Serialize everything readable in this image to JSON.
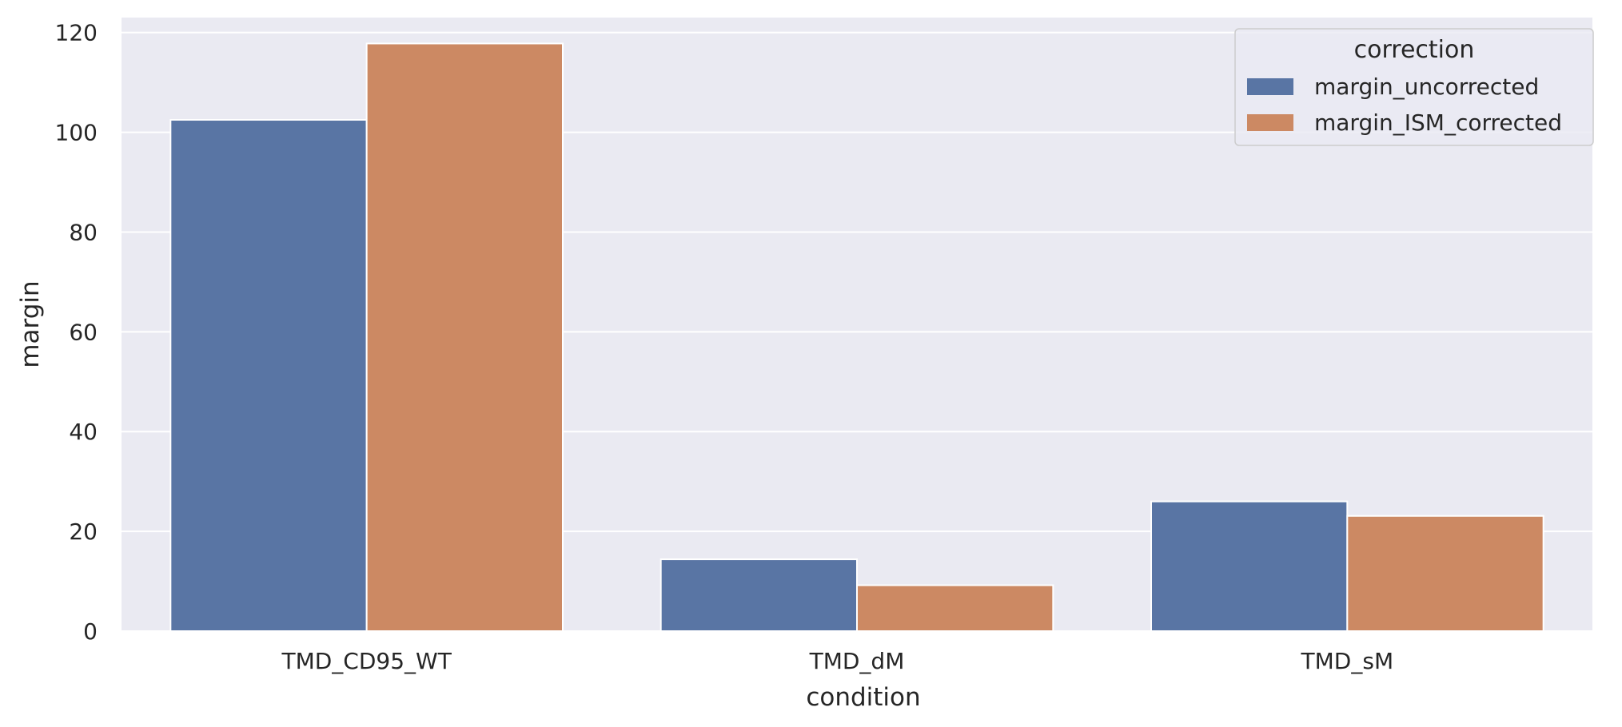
{
  "chart_data": {
    "type": "bar",
    "categories": [
      "TMD_CD95_WT",
      "TMD_dM",
      "TMD_sM"
    ],
    "series": [
      {
        "name": "margin_uncorrected",
        "values": [
          102.5,
          14.4,
          26.0
        ],
        "color": "#5975a4"
      },
      {
        "name": "margin_ISM_corrected",
        "values": [
          117.8,
          9.2,
          23.1
        ],
        "color": "#cc8963"
      }
    ],
    "xlabel": "condition",
    "ylabel": "margin",
    "ylim": [
      0,
      123
    ],
    "yticks": [
      0,
      20,
      40,
      60,
      80,
      100,
      120
    ],
    "grid": true,
    "legend": {
      "title": "correction",
      "position": "top-right"
    },
    "background": "#eaeaf2",
    "gridColor": "#ffffff"
  }
}
